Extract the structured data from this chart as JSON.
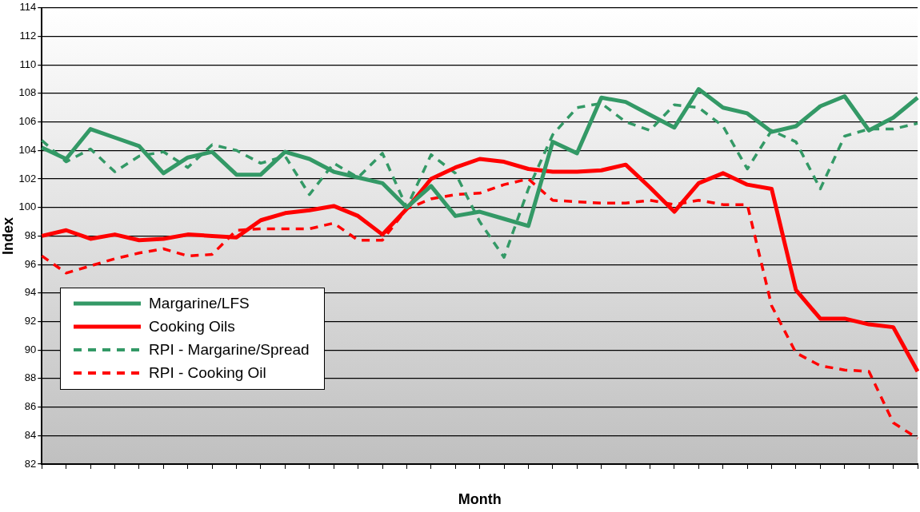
{
  "chart_data": {
    "type": "line",
    "xlabel": "Month",
    "ylabel": "Index",
    "categories": [
      null,
      null,
      null,
      null,
      null,
      null,
      null,
      null,
      null,
      null,
      null,
      null,
      null,
      null,
      null,
      null,
      null,
      null,
      null,
      null,
      null,
      null,
      null,
      null,
      null,
      null,
      null,
      null,
      null,
      null,
      null,
      null,
      null,
      null,
      null,
      null,
      null
    ],
    "series": [
      {
        "name": "Margarine/LFS",
        "color": "#339966",
        "line_style": "solid",
        "values": [
          104.2,
          103.4,
          105.5,
          104.9,
          104.3,
          102.4,
          103.5,
          103.9,
          102.3,
          102.3,
          103.9,
          103.4,
          102.5,
          102.1,
          101.7,
          100.0,
          101.5,
          99.4,
          99.7,
          99.2,
          98.7,
          104.6,
          103.8,
          107.7,
          107.4,
          106.5,
          105.6,
          108.3,
          107.0,
          106.6,
          105.3,
          105.7,
          107.1,
          107.8,
          105.4,
          106.3,
          107.7
        ]
      },
      {
        "name": "Cooking Oils",
        "color": "#ff0000",
        "line_style": "solid",
        "values": [
          98.0,
          98.4,
          97.8,
          98.1,
          97.7,
          97.8,
          98.1,
          98.0,
          97.9,
          99.1,
          99.6,
          99.8,
          100.1,
          99.4,
          98.1,
          99.9,
          102.0,
          102.8,
          103.4,
          103.2,
          102.7,
          102.5,
          102.5,
          102.6,
          103.0,
          101.4,
          99.7,
          101.7,
          102.4,
          101.6,
          101.3,
          94.2,
          92.2,
          92.2,
          91.8,
          91.6,
          88.5
        ]
      },
      {
        "name": "RPI - Margarine/Spread",
        "color": "#339966",
        "line_style": "dashed",
        "values": [
          104.7,
          103.2,
          104.1,
          102.5,
          103.6,
          103.9,
          102.8,
          104.4,
          104.0,
          103.1,
          103.6,
          100.9,
          103.1,
          102.1,
          103.8,
          100.0,
          103.7,
          102.4,
          99.0,
          96.5,
          101.3,
          105.1,
          107.0,
          107.3,
          106.0,
          105.4,
          107.2,
          107.0,
          105.7,
          102.7,
          105.4,
          104.6,
          101.3,
          105.0,
          105.5,
          105.5,
          105.9
        ]
      },
      {
        "name": "RPI - Cooking Oil",
        "color": "#ff0000",
        "line_style": "dashed",
        "values": [
          96.6,
          95.4,
          95.9,
          96.4,
          96.8,
          97.1,
          96.6,
          96.7,
          98.4,
          98.5,
          98.5,
          98.5,
          98.9,
          97.7,
          97.7,
          99.9,
          100.6,
          100.9,
          101.0,
          101.6,
          102.0,
          100.5,
          100.4,
          100.3,
          100.3,
          100.5,
          100.2,
          100.5,
          100.2,
          100.2,
          93.1,
          89.8,
          88.9,
          88.6,
          88.5,
          84.9,
          83.8
        ]
      }
    ],
    "ylim": [
      82,
      114
    ],
    "yticks": [
      82,
      84,
      86,
      88,
      90,
      92,
      94,
      96,
      98,
      100,
      102,
      104,
      106,
      108,
      110,
      112,
      114
    ],
    "grid": "y",
    "legend": "bottom left",
    "marker": "none"
  }
}
